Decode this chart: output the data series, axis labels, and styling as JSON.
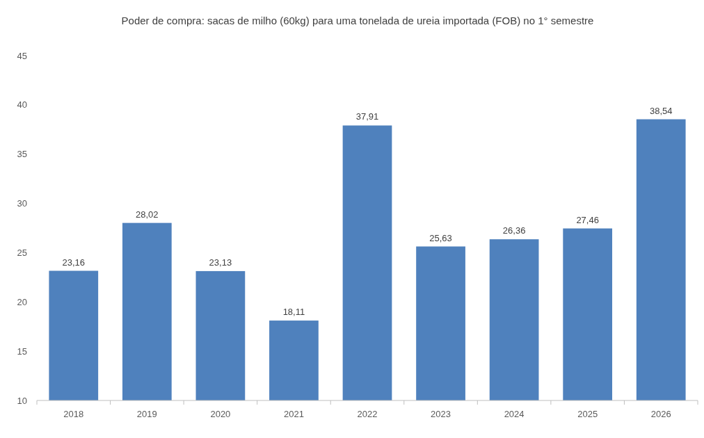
{
  "chart_data": {
    "type": "bar",
    "title": "Poder de compra: sacas de milho (60kg) para uma tonelada de ureia importada (FOB) no 1° semestre",
    "categories": [
      "2018",
      "2019",
      "2020",
      "2021",
      "2022",
      "2023",
      "2024",
      "2025",
      "2026"
    ],
    "values": [
      23.16,
      28.02,
      23.13,
      18.11,
      37.91,
      25.63,
      26.36,
      27.46,
      38.54
    ],
    "value_labels": [
      "23,16",
      "28,02",
      "23,13",
      "18,11",
      "37,91",
      "25,63",
      "26,36",
      "27,46",
      "38,54"
    ],
    "color": "#4f81bd",
    "ylim": [
      10,
      45
    ],
    "yticks": [
      10,
      15,
      20,
      25,
      30,
      35,
      40,
      45
    ],
    "grid": false
  }
}
